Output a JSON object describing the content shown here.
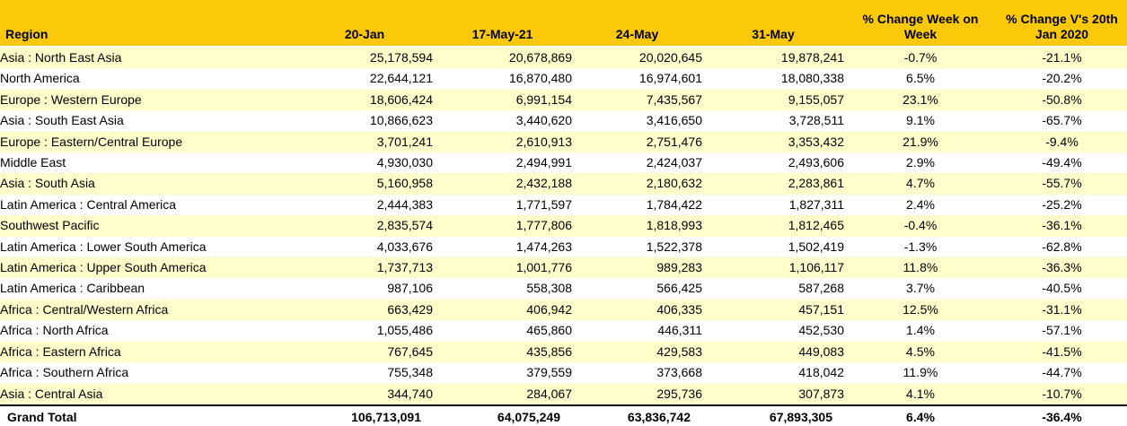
{
  "chart_data": {
    "type": "table",
    "columns": [
      "Region",
      "20-Jan",
      "17-May-21",
      "24-May",
      "31-May",
      "% Change Week on Week",
      "% Change V's 20th Jan 2020"
    ],
    "rows": [
      [
        "Asia : North East Asia",
        "25,178,594",
        "20,678,869",
        "20,020,645",
        "19,878,241",
        "-0.7%",
        "-21.1%"
      ],
      [
        "North America",
        "22,644,121",
        "16,870,480",
        "16,974,601",
        "18,080,338",
        "6.5%",
        "-20.2%"
      ],
      [
        "Europe : Western Europe",
        "18,606,424",
        "6,991,154",
        "7,435,567",
        "9,155,057",
        "23.1%",
        "-50.8%"
      ],
      [
        "Asia : South East Asia",
        "10,866,623",
        "3,440,620",
        "3,416,650",
        "3,728,511",
        "9.1%",
        "-65.7%"
      ],
      [
        "Europe : Eastern/Central Europe",
        "3,701,241",
        "2,610,913",
        "2,751,476",
        "3,353,432",
        "21.9%",
        "-9.4%"
      ],
      [
        "Middle East",
        "4,930,030",
        "2,494,991",
        "2,424,037",
        "2,493,606",
        "2.9%",
        "-49.4%"
      ],
      [
        "Asia : South Asia",
        "5,160,958",
        "2,432,188",
        "2,180,632",
        "2,283,861",
        "4.7%",
        "-55.7%"
      ],
      [
        "Latin America : Central America",
        "2,444,383",
        "1,771,597",
        "1,784,422",
        "1,827,311",
        "2.4%",
        "-25.2%"
      ],
      [
        "Southwest Pacific",
        "2,835,574",
        "1,777,806",
        "1,818,993",
        "1,812,465",
        "-0.4%",
        "-36.1%"
      ],
      [
        "Latin America : Lower South America",
        "4,033,676",
        "1,474,263",
        "1,522,378",
        "1,502,419",
        "-1.3%",
        "-62.8%"
      ],
      [
        "Latin America : Upper South America",
        "1,737,713",
        "1,001,776",
        "989,283",
        "1,106,117",
        "11.8%",
        "-36.3%"
      ],
      [
        "Latin America : Caribbean",
        "987,106",
        "558,308",
        "566,425",
        "587,268",
        "3.7%",
        "-40.5%"
      ],
      [
        "Africa : Central/Western Africa",
        "663,429",
        "406,942",
        "406,335",
        "457,151",
        "12.5%",
        "-31.1%"
      ],
      [
        "Africa : North Africa",
        "1,055,486",
        "465,860",
        "446,311",
        "452,530",
        "1.4%",
        "-57.1%"
      ],
      [
        "Africa : Eastern Africa",
        "767,645",
        "435,856",
        "429,583",
        "449,083",
        "4.5%",
        "-41.5%"
      ],
      [
        "Africa : Southern Africa",
        "755,348",
        "379,559",
        "373,668",
        "418,042",
        "11.9%",
        "-44.7%"
      ],
      [
        "Asia : Central Asia",
        "344,740",
        "284,067",
        "295,736",
        "307,873",
        "4.1%",
        "-10.7%"
      ]
    ],
    "grand_total": [
      "Grand Total",
      "106,713,091",
      "64,075,249",
      "63,836,742",
      "67,893,305",
      "6.4%",
      "-36.4%"
    ],
    "colors": {
      "header_background": "#FCC80A",
      "row_alternate": "#FFFFCC",
      "row_plain": "#FFFFFF",
      "text": "#000000",
      "total_border": "#000000"
    },
    "layout": {
      "grid": "off",
      "striped": true,
      "total_row_bold": true
    }
  }
}
